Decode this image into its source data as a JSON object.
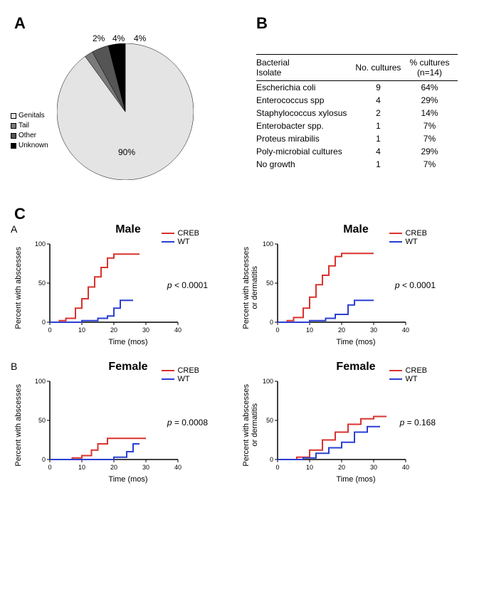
{
  "panelA": {
    "label": "A",
    "pie": {
      "slices": [
        {
          "name": "Genitals",
          "value": 90,
          "color": "#e4e4e4",
          "label": "90%"
        },
        {
          "name": "Tail",
          "value": 2,
          "color": "#7a7a7a",
          "label": "2%"
        },
        {
          "name": "Other",
          "value": 4,
          "color": "#555555",
          "label": "4%"
        },
        {
          "name": "Unknown",
          "value": 4,
          "color": "#000000",
          "label": "4%"
        }
      ],
      "radius": 96
    },
    "legend": [
      "Genitals",
      "Tail",
      "Other",
      "Unknown"
    ]
  },
  "panelB": {
    "label": "B",
    "headers": [
      "Bacterial\nIsolate",
      "No. cultures",
      "% cultures\n(n=14)"
    ],
    "rows": [
      [
        "Escherichia coli",
        "9",
        "64%"
      ],
      [
        "Enterococcus spp",
        "4",
        "29%"
      ],
      [
        "Staphylococcus xylosus",
        "2",
        "14%"
      ],
      [
        "Enterobacter spp.",
        "1",
        "7%"
      ],
      [
        "Proteus mirabilis",
        "1",
        "7%"
      ],
      [
        "Poly-microbial cultures",
        "4",
        "29%"
      ],
      [
        "No growth",
        "1",
        "7%"
      ]
    ]
  },
  "panelC": {
    "label": "C",
    "legend": [
      {
        "label": "CREB",
        "color": "#d9332d"
      },
      {
        "label": "WT",
        "color": "#2a3fd0"
      }
    ],
    "xlabel": "Time (mos)",
    "axis": {
      "xmax": 40,
      "ymax": 100,
      "xticks": [
        0,
        10,
        20,
        30,
        40
      ],
      "yticks": [
        0,
        50,
        100
      ]
    },
    "subpanels": [
      {
        "sublabel": "A",
        "title": "Male",
        "ylabel_left": "Percent with abscesses",
        "ylabel_right": "Percent with abscesses\nor dermatitis",
        "pval_left": "p < 0.0001",
        "pval_right": "p < 0.0001",
        "left": {
          "CREB": [
            [
              0,
              0
            ],
            [
              3,
              2
            ],
            [
              5,
              5
            ],
            [
              8,
              18
            ],
            [
              10,
              30
            ],
            [
              12,
              45
            ],
            [
              14,
              58
            ],
            [
              16,
              70
            ],
            [
              18,
              82
            ],
            [
              20,
              87
            ],
            [
              28,
              87
            ]
          ],
          "WT": [
            [
              0,
              0
            ],
            [
              10,
              2
            ],
            [
              15,
              5
            ],
            [
              18,
              8
            ],
            [
              20,
              18
            ],
            [
              22,
              28
            ],
            [
              26,
              28
            ]
          ]
        },
        "right": {
          "CREB": [
            [
              0,
              0
            ],
            [
              3,
              2
            ],
            [
              5,
              6
            ],
            [
              8,
              18
            ],
            [
              10,
              32
            ],
            [
              12,
              48
            ],
            [
              14,
              60
            ],
            [
              16,
              72
            ],
            [
              18,
              84
            ],
            [
              20,
              88
            ],
            [
              30,
              88
            ]
          ],
          "WT": [
            [
              0,
              0
            ],
            [
              10,
              2
            ],
            [
              15,
              5
            ],
            [
              18,
              10
            ],
            [
              22,
              22
            ],
            [
              24,
              28
            ],
            [
              30,
              28
            ]
          ]
        }
      },
      {
        "sublabel": "B",
        "title": "Female",
        "ylabel_left": "Percent with abscesses",
        "ylabel_right": "Percent with abscesses\nor dermatitis",
        "pval_left": "p = 0.0008",
        "pval_right": "p = 0.168",
        "left": {
          "CREB": [
            [
              0,
              0
            ],
            [
              7,
              2
            ],
            [
              10,
              5
            ],
            [
              13,
              12
            ],
            [
              15,
              20
            ],
            [
              18,
              27
            ],
            [
              22,
              27
            ],
            [
              30,
              27
            ]
          ],
          "WT": [
            [
              0,
              0
            ],
            [
              15,
              0
            ],
            [
              20,
              3
            ],
            [
              24,
              10
            ],
            [
              26,
              20
            ],
            [
              28,
              20
            ]
          ]
        },
        "right": {
          "CREB": [
            [
              0,
              0
            ],
            [
              6,
              3
            ],
            [
              10,
              12
            ],
            [
              14,
              25
            ],
            [
              18,
              35
            ],
            [
              22,
              45
            ],
            [
              26,
              52
            ],
            [
              30,
              55
            ],
            [
              34,
              55
            ]
          ],
          "WT": [
            [
              0,
              0
            ],
            [
              8,
              2
            ],
            [
              12,
              8
            ],
            [
              16,
              15
            ],
            [
              20,
              22
            ],
            [
              24,
              35
            ],
            [
              28,
              42
            ],
            [
              32,
              42
            ]
          ]
        }
      }
    ]
  }
}
